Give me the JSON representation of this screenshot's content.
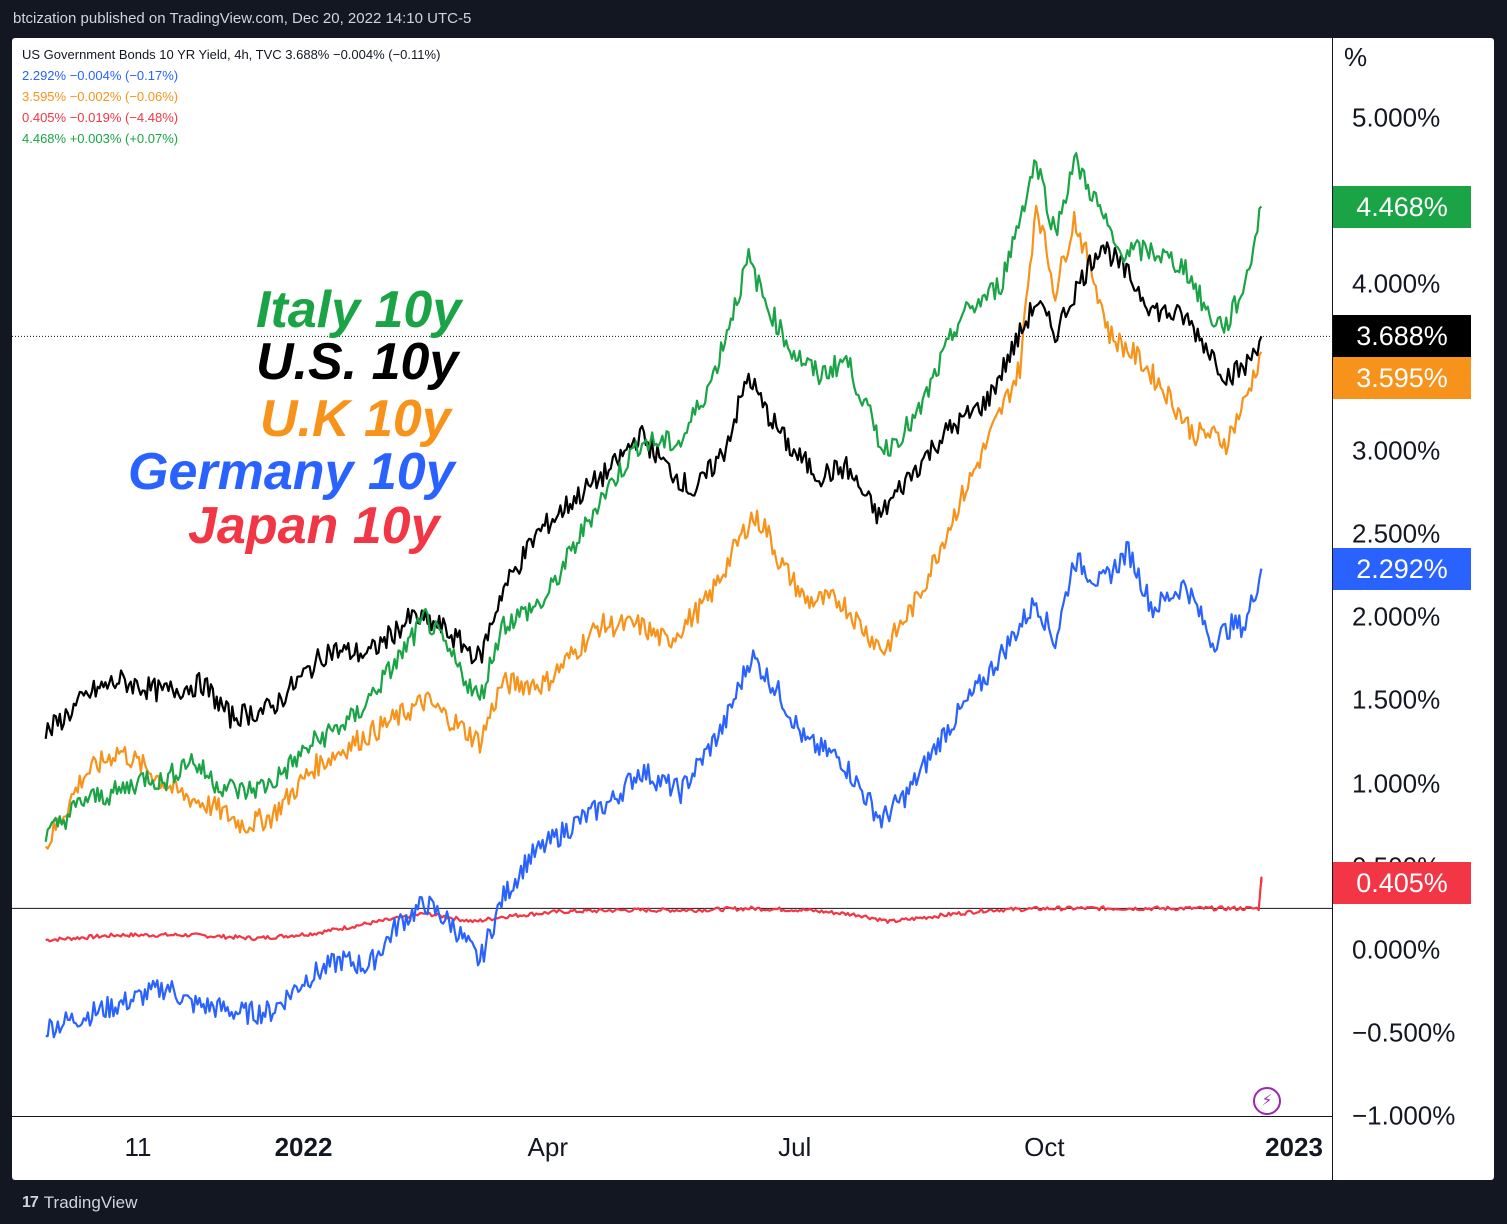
{
  "header": {
    "publish_text": "btcization published on TradingView.com, Dec 20, 2022 14:10 UTC-5"
  },
  "legend": {
    "main": "US Government Bonds 10 YR Yield, 4h, TVC  3.688%  −0.004% (−0.11%)",
    "rows": [
      {
        "text": "2.292%  −0.004% (−0.17%)",
        "color": "#2962ff"
      },
      {
        "text": "3.595%  −0.002% (−0.06%)",
        "color": "#f7931a"
      },
      {
        "text": "0.405%  −0.019% (−4.48%)",
        "color": "#f23645"
      },
      {
        "text": "4.468%  +0.003% (+0.07%)",
        "color": "#1aa446"
      }
    ]
  },
  "annotations": [
    {
      "text": "Italy 10y",
      "color": "#1aa446"
    },
    {
      "text": "U.S. 10y",
      "color": "#000000"
    },
    {
      "text": "U.K 10y",
      "color": "#f7931a"
    },
    {
      "text": "Germany 10y",
      "color": "#2962ff"
    },
    {
      "text": "Japan 10y",
      "color": "#f23645"
    }
  ],
  "footer": {
    "brand": "TradingView",
    "logo_icon": "tradingview-logo-icon"
  },
  "chart_data": {
    "type": "line",
    "y_unit": "%",
    "ylim": [
      -1.0,
      5.5
    ],
    "y_ticks": [
      "5.000%",
      "4.000%",
      "3.000%",
      "2.500%",
      "2.000%",
      "1.500%",
      "1.000%",
      "0.500%",
      "0.000%",
      "−0.500%",
      "−1.000%"
    ],
    "y_tick_values": [
      5.0,
      4.0,
      3.0,
      2.5,
      2.0,
      1.5,
      1.0,
      0.5,
      0.0,
      -0.5,
      -1.0
    ],
    "x_ticks": [
      {
        "label": "11",
        "bold": false,
        "date": "2021-11-01"
      },
      {
        "label": "2022",
        "bold": true,
        "date": "2022-01-01"
      },
      {
        "label": "Apr",
        "bold": false,
        "date": "2022-04-01"
      },
      {
        "label": "Jul",
        "bold": false,
        "date": "2022-07-01"
      },
      {
        "label": "Oct",
        "bold": false,
        "date": "2022-10-01"
      },
      {
        "label": "2023",
        "bold": true,
        "date": "2023-01-01"
      }
    ],
    "x_range": [
      "2021-09-28",
      "2023-01-01"
    ],
    "price_line": 3.688,
    "grid": false,
    "series": [
      {
        "key": "japan",
        "color": "#f23645",
        "last_label": "0.405%",
        "last": 0.405,
        "points": [
          [
            "2021-09-28",
            0.06
          ],
          [
            "2021-10-25",
            0.09
          ],
          [
            "2021-11-20",
            0.09
          ],
          [
            "2021-12-15",
            0.07
          ],
          [
            "2022-01-05",
            0.1
          ],
          [
            "2022-01-25",
            0.16
          ],
          [
            "2022-02-15",
            0.22
          ],
          [
            "2022-03-05",
            0.17
          ],
          [
            "2022-03-15",
            0.2
          ],
          [
            "2022-04-05",
            0.23
          ],
          [
            "2022-04-30",
            0.24
          ],
          [
            "2022-05-25",
            0.24
          ],
          [
            "2022-06-15",
            0.25
          ],
          [
            "2022-07-05",
            0.24
          ],
          [
            "2022-07-25",
            0.21
          ],
          [
            "2022-08-05",
            0.17
          ],
          [
            "2022-08-20",
            0.2
          ],
          [
            "2022-09-10",
            0.24
          ],
          [
            "2022-10-05",
            0.25
          ],
          [
            "2022-11-05",
            0.25
          ],
          [
            "2022-12-01",
            0.25
          ],
          [
            "2022-12-19",
            0.25
          ],
          [
            "2022-12-20",
            0.43
          ],
          [
            "2022-12-20",
            0.405
          ]
        ]
      },
      {
        "key": "germany",
        "color": "#2962ff",
        "last_label": "2.292%",
        "last": 2.292,
        "points": [
          [
            "2021-09-28",
            -0.47
          ],
          [
            "2021-10-15",
            -0.38
          ],
          [
            "2021-10-28",
            -0.31
          ],
          [
            "2021-11-05",
            -0.26
          ],
          [
            "2021-11-12",
            -0.22
          ],
          [
            "2021-11-20",
            -0.32
          ],
          [
            "2021-12-01",
            -0.35
          ],
          [
            "2021-12-10",
            -0.38
          ],
          [
            "2021-12-20",
            -0.37
          ],
          [
            "2022-01-02",
            -0.17
          ],
          [
            "2022-01-15",
            -0.06
          ],
          [
            "2022-01-25",
            -0.1
          ],
          [
            "2022-02-05",
            0.16
          ],
          [
            "2022-02-15",
            0.28
          ],
          [
            "2022-02-25",
            0.15
          ],
          [
            "2022-03-07",
            -0.07
          ],
          [
            "2022-03-15",
            0.3
          ],
          [
            "2022-03-25",
            0.55
          ],
          [
            "2022-04-10",
            0.75
          ],
          [
            "2022-04-25",
            0.9
          ],
          [
            "2022-05-05",
            1.08
          ],
          [
            "2022-05-20",
            0.95
          ],
          [
            "2022-06-05",
            1.35
          ],
          [
            "2022-06-15",
            1.77
          ],
          [
            "2022-06-25",
            1.55
          ],
          [
            "2022-07-05",
            1.25
          ],
          [
            "2022-07-18",
            1.15
          ],
          [
            "2022-07-28",
            0.9
          ],
          [
            "2022-08-02",
            0.78
          ],
          [
            "2022-08-12",
            0.95
          ],
          [
            "2022-08-25",
            1.3
          ],
          [
            "2022-09-10",
            1.65
          ],
          [
            "2022-09-28",
            2.1
          ],
          [
            "2022-10-05",
            1.85
          ],
          [
            "2022-10-12",
            2.35
          ],
          [
            "2022-10-22",
            2.2
          ],
          [
            "2022-11-01",
            2.4
          ],
          [
            "2022-11-10",
            2.05
          ],
          [
            "2022-11-22",
            2.2
          ],
          [
            "2022-12-02",
            1.85
          ],
          [
            "2022-12-09",
            1.95
          ],
          [
            "2022-12-14",
            1.95
          ],
          [
            "2022-12-20",
            2.292
          ]
        ]
      },
      {
        "key": "uk",
        "color": "#f7931a",
        "last_label": "3.595%",
        "last": 3.595,
        "points": [
          [
            "2021-09-28",
            0.62
          ],
          [
            "2021-10-12",
            1.05
          ],
          [
            "2021-10-25",
            1.2
          ],
          [
            "2021-11-05",
            1.08
          ],
          [
            "2021-11-15",
            0.95
          ],
          [
            "2021-11-30",
            0.85
          ],
          [
            "2021-12-10",
            0.75
          ],
          [
            "2021-12-20",
            0.8
          ],
          [
            "2022-01-05",
            1.1
          ],
          [
            "2022-01-20",
            1.25
          ],
          [
            "2022-02-05",
            1.4
          ],
          [
            "2022-02-15",
            1.5
          ],
          [
            "2022-03-07",
            1.25
          ],
          [
            "2022-03-15",
            1.6
          ],
          [
            "2022-03-31",
            1.6
          ],
          [
            "2022-04-20",
            1.95
          ],
          [
            "2022-05-05",
            1.95
          ],
          [
            "2022-05-15",
            1.85
          ],
          [
            "2022-05-30",
            2.1
          ],
          [
            "2022-06-15",
            2.6
          ],
          [
            "2022-06-20",
            2.55
          ],
          [
            "2022-06-25",
            2.35
          ],
          [
            "2022-07-05",
            2.1
          ],
          [
            "2022-07-18",
            2.1
          ],
          [
            "2022-07-28",
            1.9
          ],
          [
            "2022-08-03",
            1.8
          ],
          [
            "2022-08-15",
            2.1
          ],
          [
            "2022-08-31",
            2.7
          ],
          [
            "2022-09-10",
            3.05
          ],
          [
            "2022-09-22",
            3.5
          ],
          [
            "2022-09-28",
            4.5
          ],
          [
            "2022-10-05",
            3.95
          ],
          [
            "2022-10-12",
            4.4
          ],
          [
            "2022-10-20",
            4.0
          ],
          [
            "2022-10-25",
            3.7
          ],
          [
            "2022-11-05",
            3.55
          ],
          [
            "2022-11-15",
            3.35
          ],
          [
            "2022-11-25",
            3.1
          ],
          [
            "2022-12-01",
            3.1
          ],
          [
            "2022-12-07",
            3.05
          ],
          [
            "2022-12-14",
            3.3
          ],
          [
            "2022-12-20",
            3.595
          ]
        ]
      },
      {
        "key": "us",
        "color": "#000000",
        "last_label": "3.688%",
        "last": 3.688,
        "points": [
          [
            "2021-09-28",
            1.3
          ],
          [
            "2021-10-15",
            1.55
          ],
          [
            "2021-10-25",
            1.62
          ],
          [
            "2021-11-10",
            1.55
          ],
          [
            "2021-11-25",
            1.6
          ],
          [
            "2021-12-05",
            1.4
          ],
          [
            "2021-12-20",
            1.45
          ],
          [
            "2022-01-10",
            1.8
          ],
          [
            "2022-01-25",
            1.78
          ],
          [
            "2022-02-10",
            2.0
          ],
          [
            "2022-02-20",
            1.95
          ],
          [
            "2022-03-07",
            1.75
          ],
          [
            "2022-03-15",
            2.15
          ],
          [
            "2022-03-28",
            2.5
          ],
          [
            "2022-04-10",
            2.7
          ],
          [
            "2022-04-25",
            2.9
          ],
          [
            "2022-05-05",
            3.1
          ],
          [
            "2022-05-15",
            2.9
          ],
          [
            "2022-05-25",
            2.75
          ],
          [
            "2022-06-05",
            3.0
          ],
          [
            "2022-06-14",
            3.45
          ],
          [
            "2022-06-20",
            3.25
          ],
          [
            "2022-06-30",
            3.0
          ],
          [
            "2022-07-10",
            2.85
          ],
          [
            "2022-07-20",
            2.9
          ],
          [
            "2022-08-01",
            2.6
          ],
          [
            "2022-08-10",
            2.8
          ],
          [
            "2022-08-25",
            3.1
          ],
          [
            "2022-09-10",
            3.3
          ],
          [
            "2022-09-28",
            3.9
          ],
          [
            "2022-10-05",
            3.7
          ],
          [
            "2022-10-12",
            3.95
          ],
          [
            "2022-10-22",
            4.25
          ],
          [
            "2022-11-01",
            4.05
          ],
          [
            "2022-11-10",
            3.85
          ],
          [
            "2022-11-22",
            3.8
          ],
          [
            "2022-12-01",
            3.6
          ],
          [
            "2022-12-07",
            3.45
          ],
          [
            "2022-12-14",
            3.5
          ],
          [
            "2022-12-20",
            3.688
          ]
        ]
      },
      {
        "key": "italy",
        "color": "#1aa446",
        "last_label": "4.468%",
        "last": 4.468,
        "points": [
          [
            "2021-09-28",
            0.68
          ],
          [
            "2021-10-12",
            0.9
          ],
          [
            "2021-10-25",
            0.95
          ],
          [
            "2021-11-05",
            1.05
          ],
          [
            "2021-11-10",
            1.0
          ],
          [
            "2021-11-20",
            1.15
          ],
          [
            "2021-11-30",
            1.0
          ],
          [
            "2021-12-10",
            0.95
          ],
          [
            "2021-12-20",
            1.0
          ],
          [
            "2022-01-05",
            1.25
          ],
          [
            "2022-01-20",
            1.4
          ],
          [
            "2022-02-05",
            1.75
          ],
          [
            "2022-02-15",
            2.0
          ],
          [
            "2022-03-07",
            1.5
          ],
          [
            "2022-03-15",
            1.95
          ],
          [
            "2022-03-31",
            2.1
          ],
          [
            "2022-04-20",
            2.7
          ],
          [
            "2022-05-05",
            3.05
          ],
          [
            "2022-05-20",
            3.05
          ],
          [
            "2022-06-01",
            3.45
          ],
          [
            "2022-06-14",
            4.15
          ],
          [
            "2022-06-20",
            3.9
          ],
          [
            "2022-06-30",
            3.6
          ],
          [
            "2022-07-10",
            3.45
          ],
          [
            "2022-07-20",
            3.55
          ],
          [
            "2022-08-03",
            3.0
          ],
          [
            "2022-08-15",
            3.2
          ],
          [
            "2022-08-31",
            3.8
          ],
          [
            "2022-09-15",
            4.0
          ],
          [
            "2022-09-28",
            4.75
          ],
          [
            "2022-10-05",
            4.3
          ],
          [
            "2022-10-12",
            4.75
          ],
          [
            "2022-10-20",
            4.5
          ],
          [
            "2022-10-28",
            4.2
          ],
          [
            "2022-11-10",
            4.2
          ],
          [
            "2022-11-22",
            4.1
          ],
          [
            "2022-12-01",
            3.8
          ],
          [
            "2022-12-07",
            3.75
          ],
          [
            "2022-12-14",
            4.0
          ],
          [
            "2022-12-20",
            4.468
          ]
        ]
      }
    ]
  }
}
